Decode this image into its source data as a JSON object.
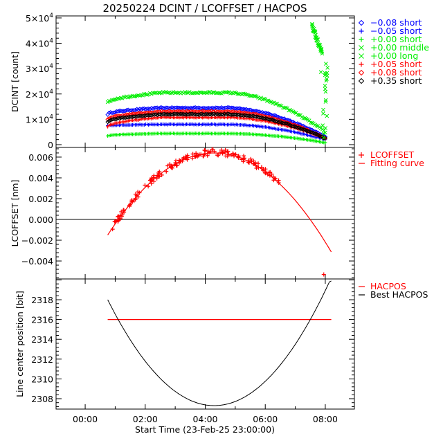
{
  "chart_data": [
    {
      "type": "scatter",
      "title": "20250224 DCINT / LCOFFSET / HACPOS",
      "ylabel": "DCINT [count]",
      "xlim": [
        -0.97,
        8.97
      ],
      "ylim": [
        -1100,
        50800
      ],
      "y_ticks": [
        {
          "value": 0,
          "label": "0",
          "mantissa": "",
          "exp": ""
        },
        {
          "value": 10000,
          "label": "1×10^4",
          "mantissa": "1×10",
          "exp": "4"
        },
        {
          "value": 20000,
          "label": "2×10^4",
          "mantissa": "2×10",
          "exp": "4"
        },
        {
          "value": 30000,
          "label": "3×10^4",
          "mantissa": "3×10",
          "exp": "4"
        },
        {
          "value": 40000,
          "label": "4×10^4",
          "mantissa": "4×10",
          "exp": "4"
        },
        {
          "value": 50000,
          "label": "5×10^4",
          "mantissa": "5×10",
          "exp": "4"
        }
      ],
      "legend_position": "right",
      "series": [
        {
          "name": "−0.08 short",
          "symbol": "diamond",
          "color": "#0000ff",
          "start": 12000,
          "peak": 14500,
          "end": 3000
        },
        {
          "name": "−0.05 short",
          "symbol": "plus",
          "color": "#0000ff",
          "start": 7500,
          "peak": 8000,
          "end": 2000
        },
        {
          "name": "+0.00 short",
          "symbol": "plus",
          "color": "#00ee00",
          "start": 3500,
          "peak": 4400,
          "end": 800
        },
        {
          "name": "+0.00 middle",
          "symbol": "cross",
          "color": "#00ee00",
          "start": 16500,
          "peak": 20500,
          "end": 5000
        },
        {
          "name": "+0.00 long",
          "symbol": "cross",
          "color": "#00ee00",
          "start": 47000,
          "peak": 47000,
          "end": 30000
        },
        {
          "name": "+0.05 short",
          "symbol": "plus",
          "color": "#ff0000",
          "start": 7000,
          "peak": 10800,
          "end": 2500
        },
        {
          "name": "+0.08 short",
          "symbol": "diamond",
          "color": "#ff0000",
          "start": 10000,
          "peak": 13000,
          "end": 2500
        },
        {
          "name": "+0.35 short",
          "symbol": "diamond",
          "color": "#000000",
          "start": 9000,
          "peak": 12000,
          "end": 2500
        }
      ],
      "time_range_hours": [
        0.75,
        8.0
      ]
    },
    {
      "type": "scatter",
      "ylabel": "LCOFFSET [nm]",
      "xlim": [
        -0.97,
        8.97
      ],
      "ylim": [
        -0.00573,
        0.00693
      ],
      "y_ticks": [
        {
          "value": -0.004,
          "label": "−0.004"
        },
        {
          "value": -0.002,
          "label": "−0.002"
        },
        {
          "value": 0.0,
          "label": "0.000"
        },
        {
          "value": 0.002,
          "label": "0.002"
        },
        {
          "value": 0.004,
          "label": "0.004"
        },
        {
          "value": 0.006,
          "label": "0.006"
        }
      ],
      "zero_line": true,
      "legend_position": "right",
      "legend": [
        {
          "symbol": "+",
          "label": "LCOFFSET",
          "color": "#ff0000"
        },
        {
          "symbol": "−",
          "label": "Fitting curve",
          "color": "#ff0000"
        }
      ],
      "fit": {
        "x_vertex": 4.3,
        "y_vertex": 0.0064,
        "x_start": 0.75,
        "y_start": -0.0015,
        "x_end": 8.2
      },
      "outlier": {
        "x": 7.95,
        "y": -0.0053
      },
      "points_range_hours": [
        0.85,
        6.45
      ]
    },
    {
      "type": "line",
      "ylabel": "Line center position [bit]",
      "xlabel": "Start Time (23-Feb-25 23:00:00)",
      "xlim": [
        -0.97,
        8.97
      ],
      "ylim": [
        2306.95,
        2320.1
      ],
      "x_ticks": [
        {
          "value": 0,
          "label": "00:00"
        },
        {
          "value": 2,
          "label": "02:00"
        },
        {
          "value": 4,
          "label": "04:00"
        },
        {
          "value": 6,
          "label": "06:00"
        },
        {
          "value": 8,
          "label": "08:00"
        }
      ],
      "y_ticks": [
        {
          "value": 2308,
          "label": "2308"
        },
        {
          "value": 2310,
          "label": "2310"
        },
        {
          "value": 2312,
          "label": "2312"
        },
        {
          "value": 2314,
          "label": "2314"
        },
        {
          "value": 2316,
          "label": "2316"
        },
        {
          "value": 2318,
          "label": "2318"
        }
      ],
      "legend_position": "right",
      "legend": [
        {
          "symbol": "−",
          "label": "HACPOS",
          "color": "#ff0000"
        },
        {
          "symbol": "−",
          "label": "Best HACPOS",
          "color": "#000000"
        }
      ],
      "hacpos": {
        "value": 2316,
        "x_range": [
          0.75,
          8.2
        ]
      },
      "best_hacpos": {
        "x_vertex": 4.3,
        "y_vertex": 2307.3,
        "x_start": 0.75,
        "y_start": 2318.0,
        "x_end": 8.2
      }
    }
  ]
}
